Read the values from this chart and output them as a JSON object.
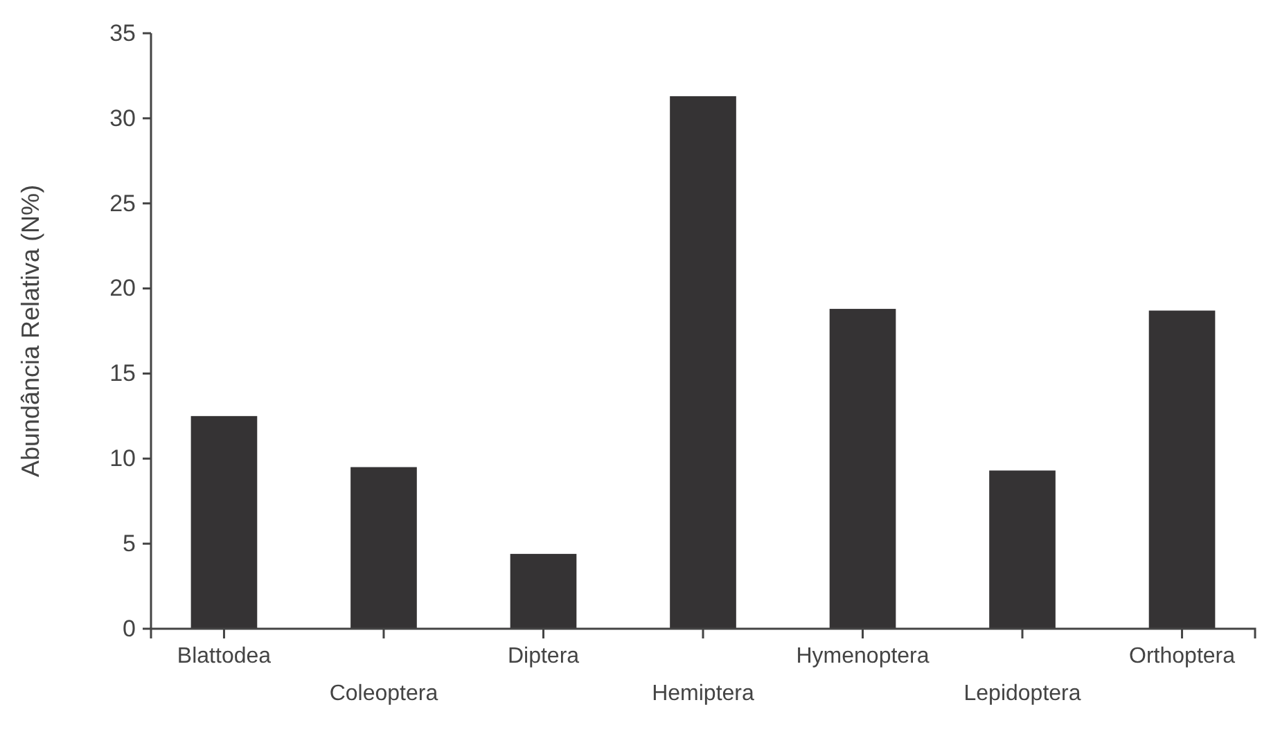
{
  "chart_data": {
    "type": "bar",
    "ylabel": "Abundância Relativa (N%)",
    "categories": [
      "Blattodea",
      "Coleoptera",
      "Diptera",
      "Hemiptera",
      "Hymenoptera",
      "Lepidoptera",
      "Orthoptera"
    ],
    "values": [
      12.5,
      9.5,
      4.4,
      31.3,
      18.8,
      9.3,
      18.7
    ],
    "color": "#353334",
    "ylim": [
      0,
      35
    ],
    "yticks": [
      0,
      5,
      10,
      15,
      20,
      25,
      30,
      35
    ],
    "grid": false
  }
}
